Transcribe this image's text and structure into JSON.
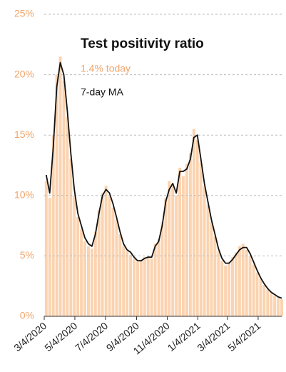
{
  "chart_data": {
    "type": "bar",
    "title": "Test positivity ratio",
    "annotation": "1.4% today",
    "x": [
      "2020-03-08",
      "2020-03-15",
      "2020-03-22",
      "2020-03-29",
      "2020-04-05",
      "2020-04-12",
      "2020-04-19",
      "2020-04-26",
      "2020-05-03",
      "2020-05-10",
      "2020-05-17",
      "2020-05-24",
      "2020-05-31",
      "2020-06-07",
      "2020-06-14",
      "2020-06-21",
      "2020-06-28",
      "2020-07-05",
      "2020-07-12",
      "2020-07-19",
      "2020-07-26",
      "2020-08-02",
      "2020-08-09",
      "2020-08-16",
      "2020-08-23",
      "2020-08-30",
      "2020-09-06",
      "2020-09-13",
      "2020-09-20",
      "2020-09-27",
      "2020-10-04",
      "2020-10-11",
      "2020-10-18",
      "2020-10-25",
      "2020-11-01",
      "2020-11-08",
      "2020-11-15",
      "2020-11-22",
      "2020-11-29",
      "2020-12-06",
      "2020-12-13",
      "2020-12-20",
      "2020-12-27",
      "2021-01-03",
      "2021-01-10",
      "2021-01-17",
      "2021-01-24",
      "2021-01-31",
      "2021-02-07",
      "2021-02-14",
      "2021-02-21",
      "2021-02-28",
      "2021-03-07",
      "2021-03-14",
      "2021-03-21",
      "2021-03-28",
      "2021-04-04",
      "2021-04-11",
      "2021-04-18",
      "2021-04-25",
      "2021-05-02",
      "2021-05-09",
      "2021-05-16",
      "2021-05-23",
      "2021-05-30",
      "2021-06-06",
      "2021-06-13",
      "2021-06-20"
    ],
    "series": [
      {
        "color": "#fbd3b0",
        "kind": "bar",
        "values": [
          11.2,
          9.8,
          15,
          20,
          21.5,
          19.5,
          16.5,
          13,
          10,
          8.2,
          7.2,
          6.2,
          5.8,
          5.6,
          7,
          8.8,
          10.2,
          10.8,
          10,
          9,
          8,
          6.8,
          5.8,
          5.4,
          5.1,
          4.8,
          4.5,
          4.7,
          4.9,
          5,
          4.8,
          6,
          6.4,
          7.8,
          9.8,
          11.2,
          10.8,
          10,
          12.3,
          11.6,
          12.6,
          13.5,
          15.5,
          14.6,
          12.7,
          10.8,
          9.2,
          7.8,
          6.6,
          5.4,
          4.6,
          4.2,
          4.5,
          4.9,
          5.3,
          5.8,
          6,
          5.5,
          5,
          4.3,
          3.6,
          3.1,
          2.6,
          2.2,
          1.9,
          1.7,
          1.5,
          1.4
        ]
      },
      {
        "name": "7-day MA",
        "color": "#111111",
        "kind": "line",
        "values": [
          11.7,
          10.2,
          14,
          19,
          21,
          20,
          17,
          13.5,
          10.5,
          8.5,
          7.5,
          6.5,
          6,
          5.8,
          6.8,
          8.5,
          10,
          10.5,
          10.2,
          9.3,
          8.2,
          7,
          6,
          5.5,
          5.3,
          4.9,
          4.6,
          4.6,
          4.8,
          4.9,
          4.9,
          5.8,
          6.2,
          7.5,
          9.5,
          10.5,
          11,
          10.2,
          12,
          12,
          12.2,
          13,
          14.8,
          15,
          13,
          11,
          9.5,
          8,
          6.8,
          5.6,
          4.8,
          4.4,
          4.4,
          4.7,
          5.1,
          5.5,
          5.7,
          5.7,
          5.2,
          4.5,
          3.8,
          3.2,
          2.7,
          2.3,
          2,
          1.8,
          1.6,
          1.5
        ]
      }
    ],
    "xlim": [
      "2020-03-04",
      "2021-06-20"
    ],
    "xticks": [
      {
        "value": "2020-03-04",
        "label": "3/4/2020"
      },
      {
        "value": "2020-05-04",
        "label": "5/4/2020"
      },
      {
        "value": "2020-07-04",
        "label": "7/4/2020"
      },
      {
        "value": "2020-09-04",
        "label": "9/4/2020"
      },
      {
        "value": "2020-11-04",
        "label": "11/4/2020"
      },
      {
        "value": "2021-01-04",
        "label": "1/4/2021"
      },
      {
        "value": "2021-03-04",
        "label": "3/4/2021"
      },
      {
        "value": "2021-05-04",
        "label": "5/4/2021"
      }
    ],
    "ylim": [
      0,
      25
    ],
    "yticks": [
      {
        "value": 0,
        "label": "0%"
      },
      {
        "value": 5,
        "label": "5%"
      },
      {
        "value": 10,
        "label": "10%"
      },
      {
        "value": 15,
        "label": "15%"
      },
      {
        "value": 20,
        "label": "20%"
      },
      {
        "value": 25,
        "label": "25%"
      }
    ],
    "grid": true
  }
}
